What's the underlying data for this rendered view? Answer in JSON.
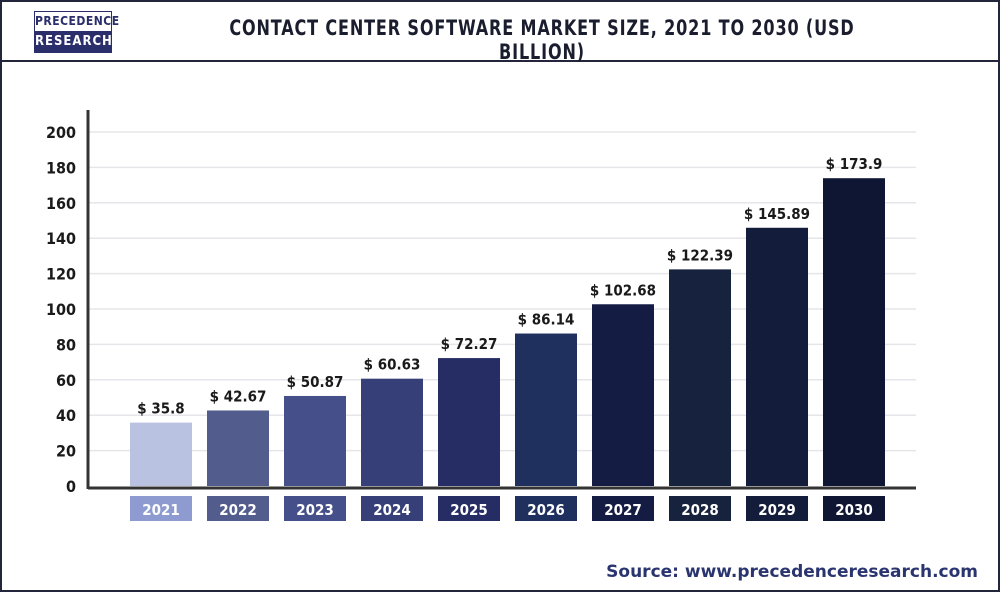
{
  "header": {
    "logo_line1": "PRECEDENCE",
    "logo_line2": "RESEARCH"
  },
  "chart_data": {
    "type": "bar",
    "title": "CONTACT CENTER SOFTWARE MARKET SIZE, 2021 TO 2030 (USD BILLION)",
    "categories": [
      "2021",
      "2022",
      "2023",
      "2024",
      "2025",
      "2026",
      "2027",
      "2028",
      "2029",
      "2030"
    ],
    "values": [
      35.8,
      42.67,
      50.87,
      60.63,
      72.27,
      86.14,
      102.68,
      122.39,
      145.89,
      173.9
    ],
    "data_labels": [
      "$ 35.8",
      "$ 42.67",
      "$ 50.87",
      "$ 60.63",
      "$ 72.27",
      "$ 86.14",
      "$ 102.68",
      "$ 122.39",
      "$ 145.89",
      "$ 173.9"
    ],
    "ylim": [
      0,
      200
    ],
    "yticks": [
      "0",
      "20",
      "40",
      "60",
      "80",
      "100",
      "120",
      "140",
      "160",
      "180",
      "200"
    ],
    "grid": true,
    "xlabel": "",
    "ylabel": "",
    "bar_colors": [
      "#b9c2e0",
      "#525d8e",
      "#45508a",
      "#363f78",
      "#262c64",
      "#1f2f5e",
      "#151c44",
      "#17223f",
      "#141c3c",
      "#0f1633"
    ],
    "label_box_colors": [
      "#8d9bd0",
      "#525d8e",
      "#45508a",
      "#363f78",
      "#262c64",
      "#1f2f5e",
      "#151c44",
      "#17223f",
      "#141c3c",
      "#0f1633"
    ]
  },
  "source": "Source: www.precedenceresearch.com"
}
